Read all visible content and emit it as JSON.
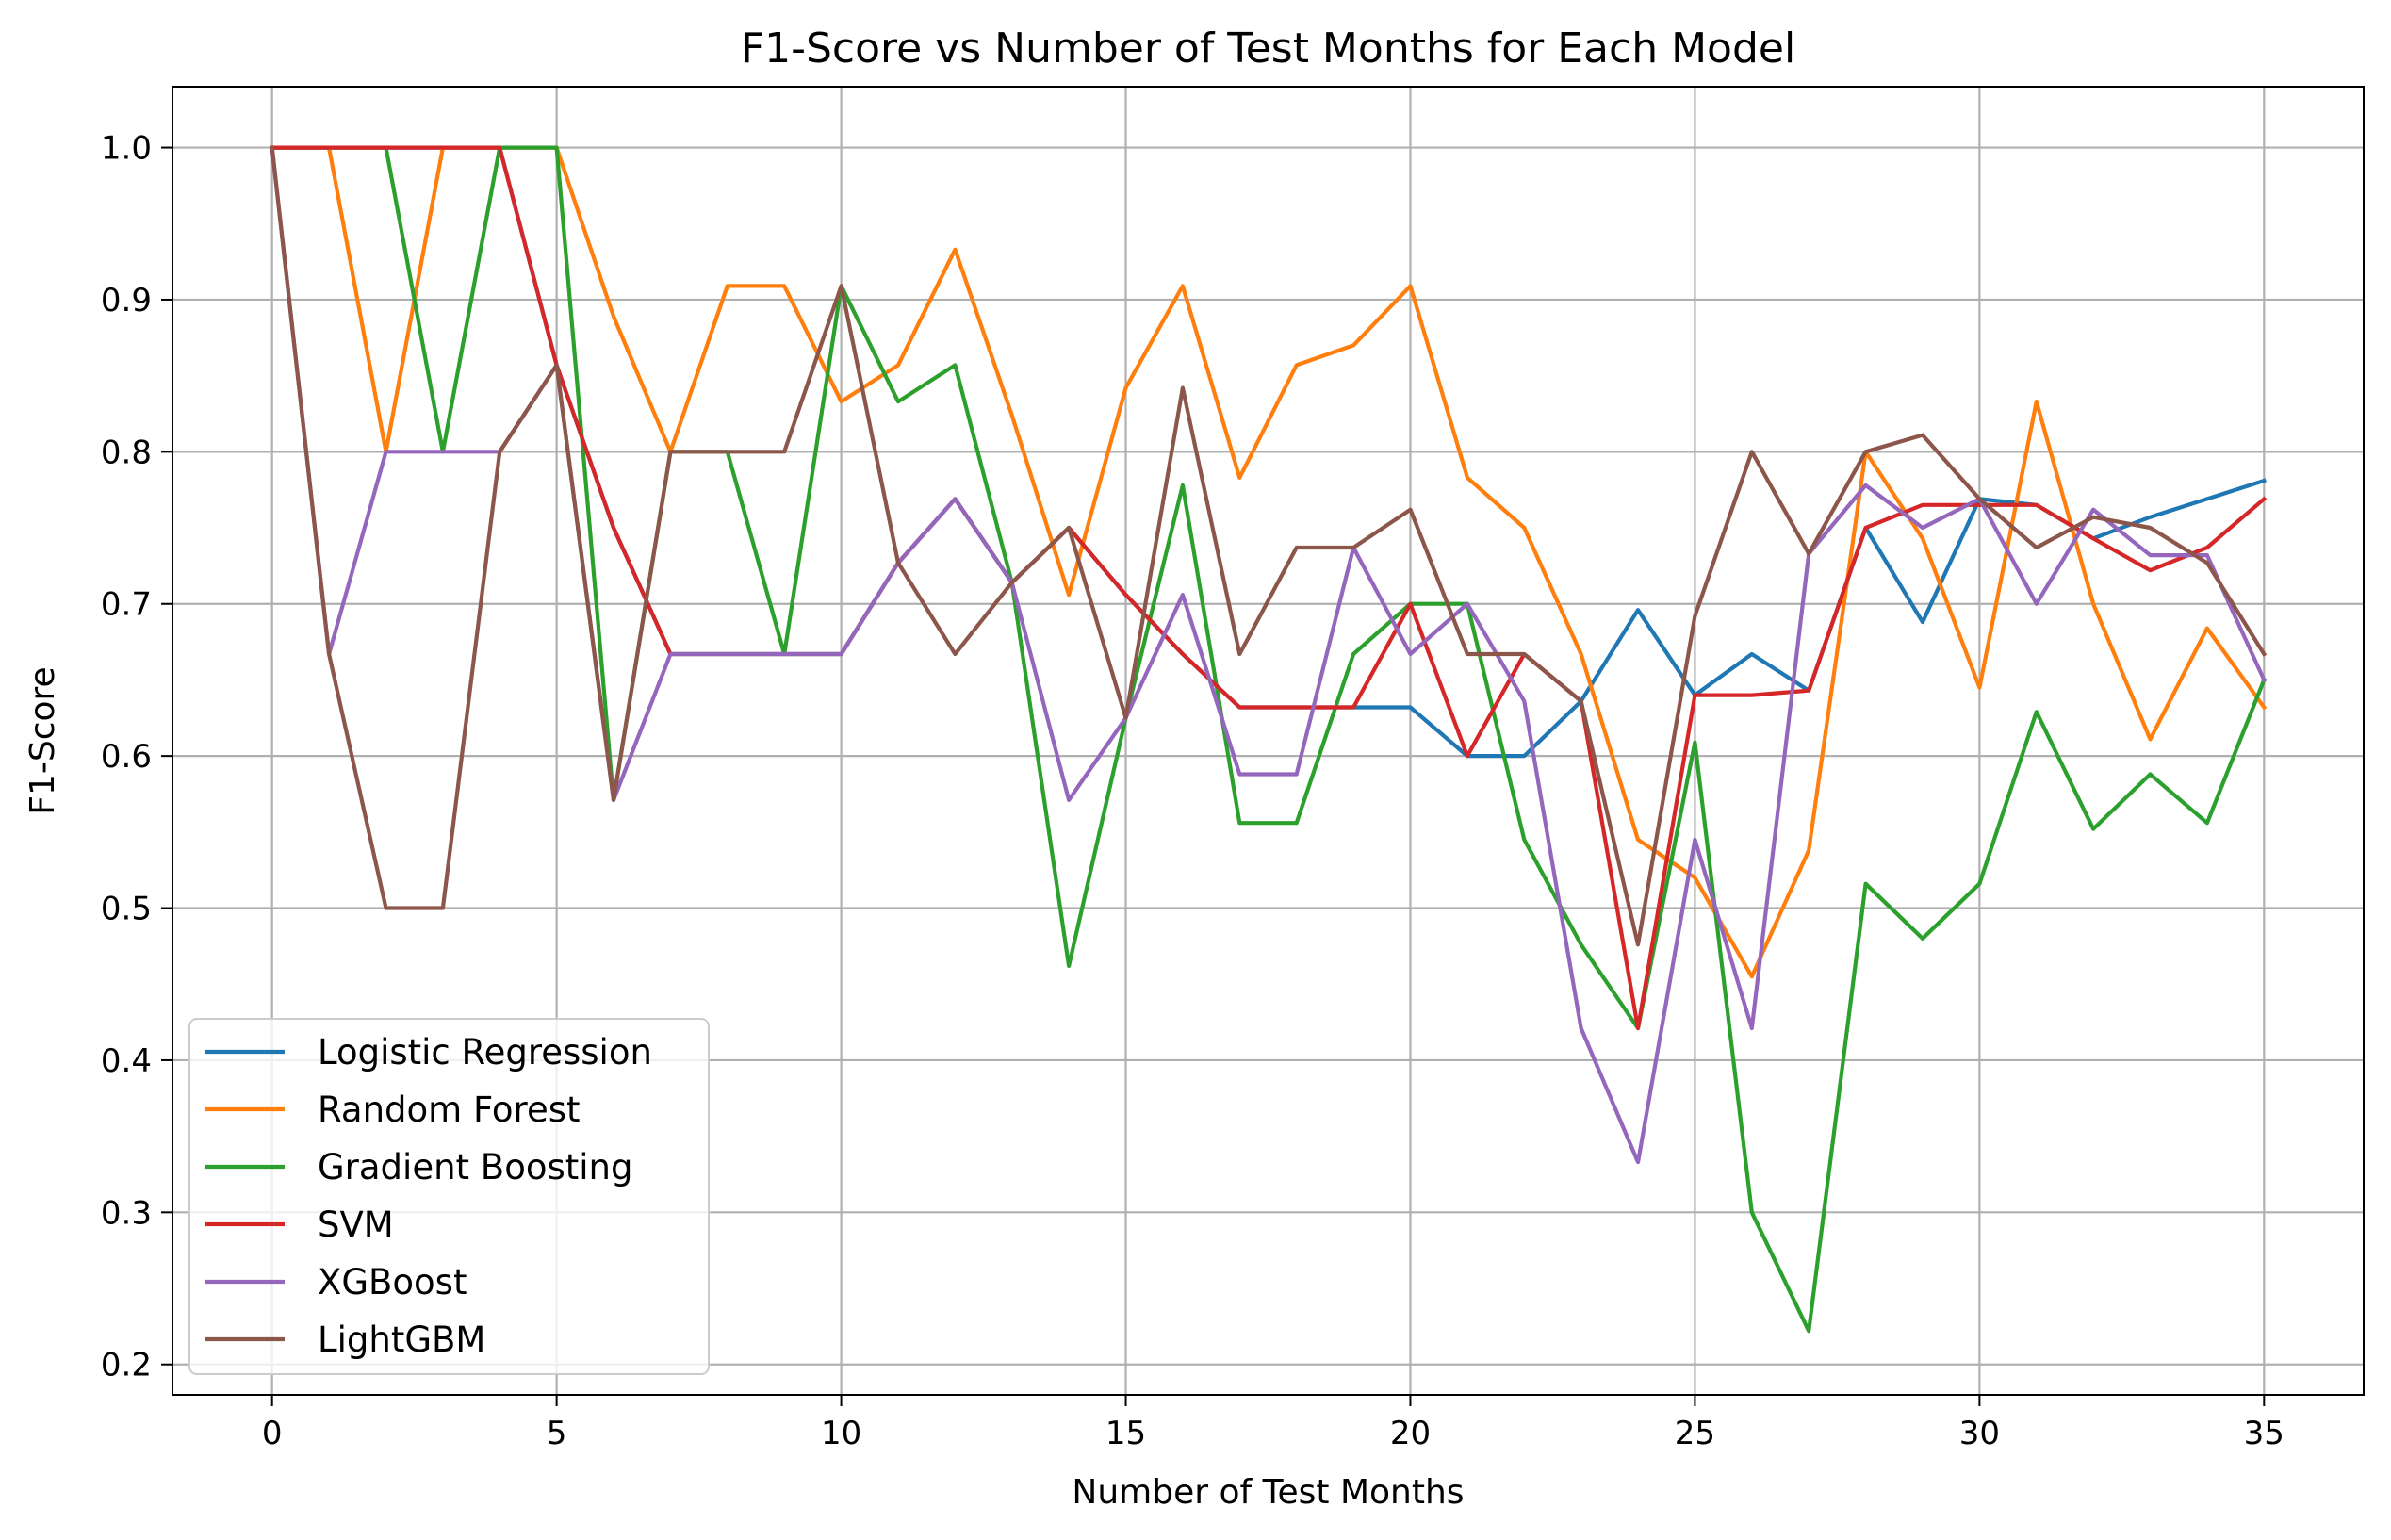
{
  "chart_data": {
    "type": "line",
    "title": "F1-Score vs Number of Test Months for Each Model",
    "xlabel": "Number of Test Months",
    "ylabel": "F1-Score",
    "xlim": [
      -1.75,
      36.75
    ],
    "ylim": [
      0.18,
      1.04
    ],
    "xticks": [
      0,
      5,
      10,
      15,
      20,
      25,
      30,
      35
    ],
    "yticks": [
      0.2,
      0.3,
      0.4,
      0.5,
      0.6,
      0.7,
      0.8,
      0.9,
      1.0
    ],
    "grid": true,
    "legend_position": "lower-left",
    "x": [
      0,
      1,
      2,
      3,
      4,
      5,
      6,
      7,
      8,
      9,
      10,
      11,
      12,
      13,
      14,
      15,
      16,
      17,
      18,
      19,
      20,
      21,
      22,
      23,
      24,
      25,
      26,
      27,
      28,
      29,
      30,
      31,
      32,
      33,
      34,
      35
    ],
    "series": [
      {
        "name": "Logistic Regression",
        "color": "#1f77b4",
        "values": [
          1.0,
          1.0,
          1.0,
          1.0,
          1.0,
          0.857,
          0.75,
          0.667,
          0.667,
          0.667,
          0.667,
          0.727,
          0.769,
          0.714,
          0.75,
          0.706,
          0.667,
          0.632,
          0.632,
          0.632,
          0.632,
          0.6,
          0.6,
          0.636,
          0.696,
          0.64,
          0.667,
          0.643,
          0.75,
          0.688,
          0.769,
          0.765,
          0.743,
          0.757,
          0.769,
          0.781
        ]
      },
      {
        "name": "Random Forest",
        "color": "#ff7f0e",
        "values": [
          1.0,
          1.0,
          0.8,
          1.0,
          1.0,
          1.0,
          0.889,
          0.8,
          0.909,
          0.909,
          0.833,
          0.857,
          0.933,
          0.824,
          0.706,
          0.842,
          0.909,
          0.783,
          0.857,
          0.87,
          0.909,
          0.783,
          0.75,
          0.667,
          0.545,
          0.52,
          0.455,
          0.538,
          0.8,
          0.743,
          0.645,
          0.833,
          0.7,
          0.611,
          0.684,
          0.632
        ]
      },
      {
        "name": "Gradient Boosting",
        "color": "#2ca02c",
        "values": [
          1.0,
          1.0,
          1.0,
          0.8,
          1.0,
          1.0,
          0.571,
          0.8,
          0.8,
          0.667,
          0.909,
          0.833,
          0.857,
          0.714,
          0.462,
          0.625,
          0.778,
          0.556,
          0.556,
          0.667,
          0.7,
          0.7,
          0.545,
          0.476,
          0.421,
          0.609,
          0.3,
          0.222,
          0.516,
          0.48,
          0.516,
          0.629,
          0.552,
          0.588,
          0.556,
          0.65
        ]
      },
      {
        "name": "SVM",
        "color": "#d62728",
        "values": [
          1.0,
          1.0,
          1.0,
          1.0,
          1.0,
          0.857,
          0.75,
          0.667,
          0.667,
          0.667,
          0.667,
          0.727,
          0.769,
          0.714,
          0.75,
          0.706,
          0.667,
          0.632,
          0.632,
          0.632,
          0.7,
          0.6,
          0.667,
          0.636,
          0.421,
          0.64,
          0.64,
          0.643,
          0.75,
          0.765,
          0.765,
          0.765,
          0.743,
          0.722,
          0.737,
          0.769
        ]
      },
      {
        "name": "XGBoost",
        "color": "#9467bd",
        "values": [
          1.0,
          0.667,
          0.8,
          0.8,
          0.8,
          0.857,
          0.571,
          0.667,
          0.667,
          0.667,
          0.667,
          0.727,
          0.769,
          0.714,
          0.571,
          0.625,
          0.706,
          0.588,
          0.588,
          0.737,
          0.667,
          0.7,
          0.636,
          0.421,
          0.333,
          0.545,
          0.421,
          0.733,
          0.778,
          0.75,
          0.769,
          0.7,
          0.762,
          0.732,
          0.732,
          0.65
        ]
      },
      {
        "name": "LightGBM",
        "color": "#8c564b",
        "values": [
          1.0,
          0.667,
          0.5,
          0.5,
          0.8,
          0.857,
          0.571,
          0.8,
          0.8,
          0.8,
          0.909,
          0.727,
          0.667,
          0.714,
          0.75,
          0.625,
          0.842,
          0.667,
          0.737,
          0.737,
          0.762,
          0.667,
          0.667,
          0.636,
          0.476,
          0.692,
          0.8,
          0.733,
          0.8,
          0.811,
          0.769,
          0.737,
          0.757,
          0.75,
          0.727,
          0.667
        ]
      }
    ]
  }
}
